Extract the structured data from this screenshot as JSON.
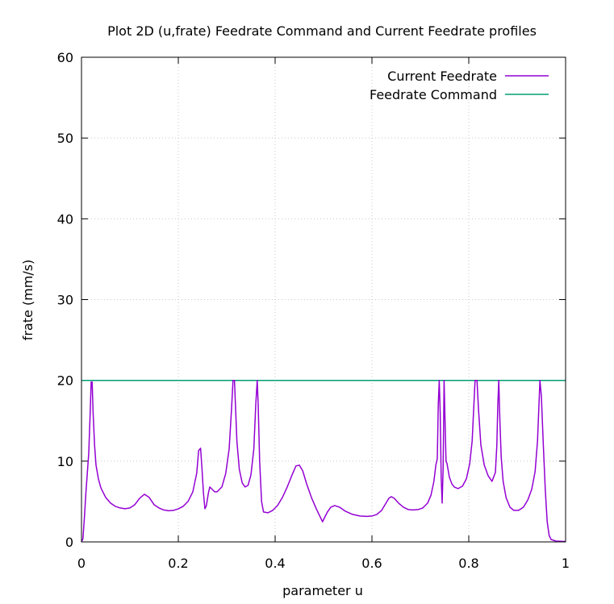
{
  "chart_data": {
    "type": "line",
    "title": "Plot 2D (u,frate) Feedrate Command and Current Feedrate profiles",
    "xlabel": "parameter u",
    "ylabel": "frate (mm/s)",
    "xlim": [
      0,
      1
    ],
    "ylim": [
      0,
      60
    ],
    "x_ticks": [
      {
        "value": 0,
        "label": "0"
      },
      {
        "value": 0.2,
        "label": "0.2"
      },
      {
        "value": 0.4,
        "label": "0.4"
      },
      {
        "value": 0.6,
        "label": "0.6"
      },
      {
        "value": 0.8,
        "label": "0.8"
      },
      {
        "value": 1,
        "label": "1"
      }
    ],
    "y_ticks": [
      {
        "value": 0,
        "label": "0"
      },
      {
        "value": 10,
        "label": "10"
      },
      {
        "value": 20,
        "label": "20"
      },
      {
        "value": 30,
        "label": "30"
      },
      {
        "value": 40,
        "label": "40"
      },
      {
        "value": 50,
        "label": "50"
      },
      {
        "value": 60,
        "label": "60"
      }
    ],
    "grid": true,
    "legend_position": "top-right",
    "series": [
      {
        "name": "Current Feedrate",
        "color": "#9400d3",
        "points": [
          [
            0,
            0
          ],
          [
            0.003,
            0.4
          ],
          [
            0.006,
            3
          ],
          [
            0.009,
            6
          ],
          [
            0.012,
            8.5
          ],
          [
            0.015,
            11
          ],
          [
            0.018,
            16
          ],
          [
            0.02,
            19.8
          ],
          [
            0.022,
            19.8
          ],
          [
            0.024,
            16
          ],
          [
            0.027,
            12
          ],
          [
            0.03,
            9.5
          ],
          [
            0.035,
            7.8
          ],
          [
            0.04,
            6.7
          ],
          [
            0.05,
            5.5
          ],
          [
            0.06,
            4.8
          ],
          [
            0.07,
            4.4
          ],
          [
            0.08,
            4.2
          ],
          [
            0.09,
            4.1
          ],
          [
            0.1,
            4.2
          ],
          [
            0.11,
            4.6
          ],
          [
            0.12,
            5.4
          ],
          [
            0.13,
            5.9
          ],
          [
            0.14,
            5.5
          ],
          [
            0.15,
            4.6
          ],
          [
            0.16,
            4.2
          ],
          [
            0.17,
            3.95
          ],
          [
            0.18,
            3.85
          ],
          [
            0.19,
            3.9
          ],
          [
            0.2,
            4.1
          ],
          [
            0.21,
            4.4
          ],
          [
            0.22,
            5
          ],
          [
            0.23,
            6.2
          ],
          [
            0.238,
            8.5
          ],
          [
            0.242,
            11.3
          ],
          [
            0.246,
            11.6
          ],
          [
            0.249,
            9
          ],
          [
            0.252,
            6
          ],
          [
            0.255,
            4.1
          ],
          [
            0.258,
            4.5
          ],
          [
            0.262,
            6
          ],
          [
            0.265,
            6.8
          ],
          [
            0.27,
            6.5
          ],
          [
            0.275,
            6.2
          ],
          [
            0.28,
            6.2
          ],
          [
            0.29,
            6.8
          ],
          [
            0.298,
            8.5
          ],
          [
            0.305,
            11.5
          ],
          [
            0.31,
            16.5
          ],
          [
            0.313,
            20
          ],
          [
            0.316,
            20
          ],
          [
            0.318,
            17
          ],
          [
            0.321,
            12.5
          ],
          [
            0.326,
            9
          ],
          [
            0.332,
            7.3
          ],
          [
            0.338,
            6.8
          ],
          [
            0.344,
            7
          ],
          [
            0.35,
            8.3
          ],
          [
            0.356,
            11.5
          ],
          [
            0.36,
            17
          ],
          [
            0.363,
            20
          ],
          [
            0.365,
            17
          ],
          [
            0.368,
            10
          ],
          [
            0.372,
            5
          ],
          [
            0.376,
            3.7
          ],
          [
            0.385,
            3.6
          ],
          [
            0.395,
            3.9
          ],
          [
            0.405,
            4.5
          ],
          [
            0.415,
            5.5
          ],
          [
            0.425,
            6.8
          ],
          [
            0.435,
            8.3
          ],
          [
            0.443,
            9.4
          ],
          [
            0.45,
            9.5
          ],
          [
            0.457,
            8.8
          ],
          [
            0.465,
            7.2
          ],
          [
            0.475,
            5.5
          ],
          [
            0.485,
            4.1
          ],
          [
            0.493,
            3.1
          ],
          [
            0.498,
            2.5
          ],
          [
            0.502,
            3
          ],
          [
            0.508,
            3.7
          ],
          [
            0.515,
            4.3
          ],
          [
            0.523,
            4.5
          ],
          [
            0.533,
            4.3
          ],
          [
            0.545,
            3.8
          ],
          [
            0.56,
            3.4
          ],
          [
            0.575,
            3.2
          ],
          [
            0.59,
            3.15
          ],
          [
            0.6,
            3.2
          ],
          [
            0.61,
            3.4
          ],
          [
            0.62,
            3.9
          ],
          [
            0.628,
            4.7
          ],
          [
            0.635,
            5.4
          ],
          [
            0.64,
            5.6
          ],
          [
            0.646,
            5.4
          ],
          [
            0.655,
            4.8
          ],
          [
            0.665,
            4.3
          ],
          [
            0.675,
            4
          ],
          [
            0.685,
            3.95
          ],
          [
            0.695,
            4
          ],
          [
            0.705,
            4.2
          ],
          [
            0.715,
            4.8
          ],
          [
            0.722,
            5.8
          ],
          [
            0.728,
            7.5
          ],
          [
            0.732,
            9.5
          ],
          [
            0.735,
            10.3
          ],
          [
            0.737,
            17
          ],
          [
            0.739,
            20
          ],
          [
            0.741,
            16
          ],
          [
            0.743,
            8
          ],
          [
            0.745,
            4.8
          ],
          [
            0.747,
            9
          ],
          [
            0.749,
            20
          ],
          [
            0.751,
            15
          ],
          [
            0.753,
            10
          ],
          [
            0.755,
            9.7
          ],
          [
            0.76,
            8
          ],
          [
            0.765,
            7.2
          ],
          [
            0.77,
            6.8
          ],
          [
            0.778,
            6.6
          ],
          [
            0.787,
            6.9
          ],
          [
            0.795,
            7.8
          ],
          [
            0.802,
            9.7
          ],
          [
            0.807,
            12.5
          ],
          [
            0.811,
            17.5
          ],
          [
            0.813,
            20
          ],
          [
            0.817,
            20
          ],
          [
            0.82,
            16.5
          ],
          [
            0.825,
            12
          ],
          [
            0.832,
            9.5
          ],
          [
            0.84,
            8.2
          ],
          [
            0.848,
            7.5
          ],
          [
            0.855,
            8.6
          ],
          [
            0.858,
            12
          ],
          [
            0.86,
            17
          ],
          [
            0.862,
            20
          ],
          [
            0.864,
            15.5
          ],
          [
            0.867,
            10.5
          ],
          [
            0.871,
            7.5
          ],
          [
            0.877,
            5.5
          ],
          [
            0.885,
            4.3
          ],
          [
            0.893,
            3.9
          ],
          [
            0.903,
            3.9
          ],
          [
            0.913,
            4.3
          ],
          [
            0.922,
            5.2
          ],
          [
            0.93,
            6.5
          ],
          [
            0.937,
            8.7
          ],
          [
            0.942,
            12.5
          ],
          [
            0.945,
            17
          ],
          [
            0.947,
            20
          ],
          [
            0.95,
            18
          ],
          [
            0.954,
            12
          ],
          [
            0.958,
            6.5
          ],
          [
            0.962,
            2.5
          ],
          [
            0.966,
            0.8
          ],
          [
            0.97,
            0.3
          ],
          [
            0.98,
            0.1
          ],
          [
            1.0,
            0.05
          ]
        ]
      },
      {
        "name": "Feedrate Command",
        "color": "#009e73",
        "points": [
          [
            0,
            20
          ],
          [
            1,
            20
          ]
        ]
      }
    ]
  }
}
